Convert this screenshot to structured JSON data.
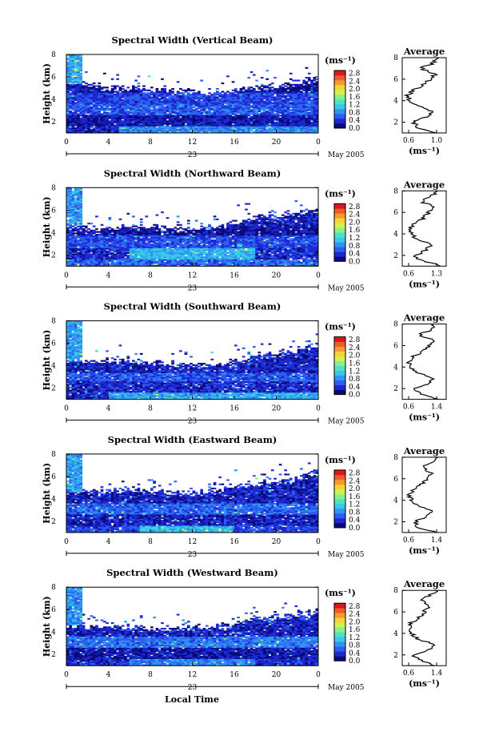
{
  "colorbar": {
    "unit": "(ms⁻¹)",
    "ticks": [
      "0.0",
      "0.4",
      "0.8",
      "1.2",
      "1.6",
      "2.0",
      "2.4",
      "2.8"
    ],
    "colors": [
      "#0a0a7a",
      "#1e28d2",
      "#2d5ef0",
      "#2e95f2",
      "#38c8e8",
      "#4ee2c3",
      "#8cf08a",
      "#d4f04a",
      "#f5d23a",
      "#f79a2e",
      "#ef5a2a",
      "#d7191c"
    ],
    "range": [
      0.0,
      2.8
    ]
  },
  "xaxis": {
    "ticks": [
      "0",
      "4",
      "8",
      "12",
      "16",
      "20",
      "0"
    ],
    "day_label": "23",
    "month_label": "May 2005",
    "label": "Local Time"
  },
  "yaxis": {
    "label": "Height (km)",
    "ticks": [
      "2",
      "4",
      "6",
      "8"
    ]
  },
  "average_title": "Average",
  "average_unit": "(ms⁻¹)",
  "chart_data": [
    {
      "type": "heatmap",
      "title": "Spectral Width (Vertical Beam)",
      "ylabel": "Height (km)",
      "x_range_hours": [
        0,
        24
      ],
      "y_range_km": [
        1,
        8
      ],
      "cell_value_units": "ms⁻¹",
      "layers": [
        {
          "y": [
            1.0,
            1.6
          ],
          "v": 0.75,
          "x": [
            5,
            24
          ]
        },
        {
          "y": [
            1.6,
            2.6
          ],
          "v": 0.25,
          "x": [
            0,
            24
          ]
        },
        {
          "y": [
            2.6,
            3.6
          ],
          "v": 0.55,
          "x": [
            0,
            24
          ]
        },
        {
          "y": [
            3.6,
            4.6
          ],
          "v": 0.45,
          "x": [
            0,
            24
          ]
        },
        {
          "y": [
            4.6,
            5.4
          ],
          "v": 0.15,
          "x": [
            1.5,
            24
          ]
        },
        {
          "y": [
            5.4,
            8.0
          ],
          "v": 0.9,
          "x": [
            0,
            1.5
          ]
        }
      ],
      "top_km": [
        5.8,
        5.0,
        5.0,
        4.8,
        4.6,
        4.5,
        5.1,
        5.3,
        5.9
      ],
      "average_profile": {
        "title": "Average",
        "xlabel": "(ms⁻¹)",
        "xticks": [
          "0.6",
          "1.0"
        ],
        "xlim": [
          0.5,
          1.3
        ],
        "ylim": [
          1,
          8
        ],
        "height_km": [
          1.0,
          1.5,
          2.0,
          2.5,
          3.0,
          3.5,
          4.0,
          4.5,
          5.0,
          5.5,
          6.0,
          6.5,
          7.0,
          7.5,
          8.0
        ],
        "width": [
          1.15,
          0.8,
          0.7,
          0.95,
          1.05,
          0.85,
          0.65,
          0.6,
          0.7,
          0.9,
          1.0,
          1.1,
          0.85,
          1.05,
          1.2
        ]
      }
    },
    {
      "type": "heatmap",
      "title": "Spectral Width (Northward Beam)",
      "ylabel": "Height (km)",
      "x_range_hours": [
        0,
        24
      ],
      "y_range_km": [
        1,
        8
      ],
      "cell_value_units": "ms⁻¹",
      "layers": [
        {
          "y": [
            1.0,
            1.6
          ],
          "v": 0.6,
          "x": [
            0,
            24
          ]
        },
        {
          "y": [
            1.6,
            2.6
          ],
          "v": 0.95,
          "x": [
            6,
            18
          ]
        },
        {
          "y": [
            1.6,
            2.6
          ],
          "v": 0.35,
          "x": [
            0,
            24
          ]
        },
        {
          "y": [
            2.6,
            3.8
          ],
          "v": 0.5,
          "x": [
            0,
            24
          ]
        },
        {
          "y": [
            3.8,
            4.6
          ],
          "v": 0.2,
          "x": [
            1,
            24
          ]
        },
        {
          "y": [
            4.6,
            8.0
          ],
          "v": 0.8,
          "x": [
            0,
            1.5
          ]
        }
      ],
      "top_km": [
        4.7,
        4.2,
        4.6,
        4.4,
        4.3,
        4.6,
        5.3,
        5.5,
        6.0
      ],
      "average_profile": {
        "title": "Average",
        "xlabel": "(ms⁻¹)",
        "xticks": [
          "0.6",
          "1.3"
        ],
        "xlim": [
          0.5,
          1.4
        ],
        "ylim": [
          1,
          8
        ],
        "height_km": [
          1.0,
          1.5,
          2.0,
          2.5,
          3.0,
          3.5,
          4.0,
          4.5,
          5.0,
          5.5,
          6.0,
          6.5,
          7.0,
          7.5,
          8.0
        ],
        "width": [
          1.3,
          0.9,
          0.75,
          1.0,
          1.1,
          0.8,
          0.7,
          0.65,
          0.75,
          0.95,
          1.05,
          1.15,
          0.9,
          1.1,
          1.2
        ]
      }
    },
    {
      "type": "heatmap",
      "title": "Spectral Width (Southward Beam)",
      "ylabel": "Height (km)",
      "x_range_hours": [
        0,
        24
      ],
      "y_range_km": [
        1,
        8
      ],
      "cell_value_units": "ms⁻¹",
      "layers": [
        {
          "y": [
            1.0,
            1.6
          ],
          "v": 0.9,
          "x": [
            4,
            24
          ]
        },
        {
          "y": [
            1.6,
            2.6
          ],
          "v": 0.35,
          "x": [
            0,
            24
          ]
        },
        {
          "y": [
            2.6,
            3.4
          ],
          "v": 0.55,
          "x": [
            0,
            24
          ]
        },
        {
          "y": [
            3.4,
            4.4
          ],
          "v": 0.3,
          "x": [
            1,
            24
          ]
        },
        {
          "y": [
            4.4,
            8.0
          ],
          "v": 0.85,
          "x": [
            0,
            1.5
          ]
        }
      ],
      "top_km": [
        4.6,
        4.3,
        4.5,
        4.2,
        4.0,
        4.2,
        4.8,
        5.2,
        5.9
      ],
      "average_profile": {
        "title": "Average",
        "xlabel": "(ms⁻¹)",
        "xticks": [
          "0.6",
          "1.4"
        ],
        "xlim": [
          0.5,
          1.5
        ],
        "ylim": [
          1,
          8
        ],
        "height_km": [
          1.0,
          1.5,
          2.0,
          2.5,
          3.0,
          3.5,
          4.0,
          4.5,
          5.0,
          5.5,
          6.0,
          6.5,
          7.0,
          7.5,
          8.0
        ],
        "width": [
          1.35,
          0.9,
          0.8,
          1.1,
          1.2,
          0.85,
          0.7,
          0.65,
          0.75,
          1.0,
          1.1,
          1.2,
          0.9,
          1.15,
          1.25
        ]
      }
    },
    {
      "type": "heatmap",
      "title": "Spectral Width (Eastward Beam)",
      "ylabel": "Height (km)",
      "x_range_hours": [
        0,
        24
      ],
      "y_range_km": [
        1,
        8
      ],
      "cell_value_units": "ms⁻¹",
      "layers": [
        {
          "y": [
            1.0,
            1.6
          ],
          "v": 1.0,
          "x": [
            7,
            16
          ]
        },
        {
          "y": [
            1.0,
            1.6
          ],
          "v": 0.45,
          "x": [
            0,
            24
          ]
        },
        {
          "y": [
            1.6,
            2.6
          ],
          "v": 0.3,
          "x": [
            0,
            24
          ]
        },
        {
          "y": [
            2.6,
            3.6
          ],
          "v": 0.6,
          "x": [
            0,
            24
          ]
        },
        {
          "y": [
            3.6,
            4.6
          ],
          "v": 0.3,
          "x": [
            1,
            24
          ]
        },
        {
          "y": [
            4.6,
            8.0
          ],
          "v": 0.85,
          "x": [
            0,
            1.5
          ]
        }
      ],
      "top_km": [
        4.8,
        4.6,
        4.8,
        4.6,
        4.5,
        4.8,
        5.4,
        5.7,
        6.4
      ],
      "average_profile": {
        "title": "Average",
        "xlabel": "(ms⁻¹)",
        "xticks": [
          "0.6",
          "1.4"
        ],
        "xlim": [
          0.5,
          1.5
        ],
        "ylim": [
          1,
          8
        ],
        "height_km": [
          1.0,
          1.5,
          2.0,
          2.5,
          3.0,
          3.5,
          4.0,
          4.5,
          5.0,
          5.5,
          6.0,
          6.5,
          7.0,
          7.5,
          8.0
        ],
        "width": [
          1.3,
          0.85,
          0.8,
          1.05,
          1.15,
          0.85,
          0.7,
          0.65,
          0.75,
          0.95,
          1.05,
          1.2,
          0.95,
          1.15,
          1.3
        ]
      }
    },
    {
      "type": "heatmap",
      "title": "Spectral Width (Westward Beam)",
      "ylabel": "Height (km)",
      "x_range_hours": [
        0,
        24
      ],
      "y_range_km": [
        1,
        8
      ],
      "cell_value_units": "ms⁻¹",
      "layers": [
        {
          "y": [
            1.0,
            1.6
          ],
          "v": 0.75,
          "x": [
            6,
            18
          ]
        },
        {
          "y": [
            1.0,
            1.6
          ],
          "v": 0.35,
          "x": [
            0,
            24
          ]
        },
        {
          "y": [
            1.6,
            2.6
          ],
          "v": 0.25,
          "x": [
            0,
            24
          ]
        },
        {
          "y": [
            2.6,
            3.6
          ],
          "v": 0.65,
          "x": [
            0,
            24
          ]
        },
        {
          "y": [
            3.6,
            4.6
          ],
          "v": 0.3,
          "x": [
            1,
            24
          ]
        },
        {
          "y": [
            4.6,
            8.0
          ],
          "v": 0.8,
          "x": [
            0,
            1.5
          ]
        }
      ],
      "top_km": [
        4.6,
        4.5,
        4.4,
        4.3,
        4.3,
        4.5,
        5.1,
        5.5,
        5.8
      ],
      "average_profile": {
        "title": "Average",
        "xlabel": "(ms⁻¹)",
        "xticks": [
          "0.6",
          "1.4"
        ],
        "xlim": [
          0.5,
          1.5
        ],
        "ylim": [
          1,
          8
        ],
        "height_km": [
          1.0,
          1.5,
          2.0,
          2.5,
          3.0,
          3.5,
          4.0,
          4.5,
          5.0,
          5.5,
          6.0,
          6.5,
          7.0,
          7.5,
          8.0
        ],
        "width": [
          1.25,
          0.9,
          0.75,
          1.1,
          1.2,
          0.85,
          0.7,
          0.65,
          0.7,
          0.9,
          1.0,
          1.1,
          0.95,
          1.1,
          1.3
        ]
      }
    }
  ]
}
